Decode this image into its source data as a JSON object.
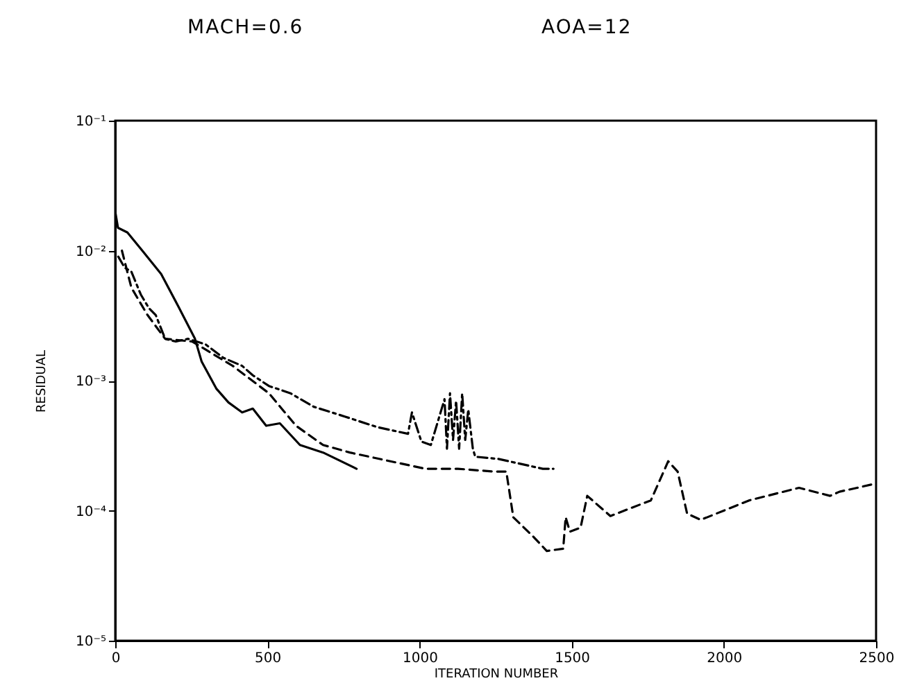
{
  "chart_data": {
    "type": "line",
    "annotations": [
      "MACH=0.6",
      "AOA=12"
    ],
    "xlabel": "ITERATION NUMBER",
    "ylabel": "RESIDUAL",
    "log": "y",
    "grid": false,
    "marker": "none",
    "xlim": [
      0,
      2500
    ],
    "xticks": [
      0,
      500,
      1000,
      1500,
      2000,
      2500
    ],
    "ylim": [
      1e-05,
      0.1
    ],
    "yticks": [
      {
        "value": 1e-05,
        "label": "10⁻⁵"
      },
      {
        "value": 0.0001,
        "label": "10⁻⁴"
      },
      {
        "value": 0.001,
        "label": "10⁻³"
      },
      {
        "value": 0.01,
        "label": "10⁻²"
      },
      {
        "value": 0.1,
        "label": "10⁻¹"
      }
    ],
    "series": [
      {
        "color": "#000000",
        "line_style": "solid",
        "x": [
          0,
          9,
          40,
          89,
          151,
          208,
          262,
          284,
          332,
          372,
          417,
          452,
          496,
          541,
          607,
          683,
          793
        ],
        "values": [
          0.02,
          0.015,
          0.0138,
          0.01,
          0.0066,
          0.0037,
          0.0021,
          0.0014,
          0.00087,
          0.00068,
          0.00057,
          0.00061,
          0.00045,
          0.00047,
          0.00032,
          0.00028,
          0.00021
        ]
      },
      {
        "color": "#000000",
        "line_style": "dotted",
        "x": [
          10,
          31,
          53,
          84,
          111,
          133,
          164,
          199,
          239,
          297,
          355,
          417,
          452,
          505,
          576,
          652,
          754,
          860,
          962,
          975,
          1006,
          1037,
          1082,
          1090,
          1100,
          1110,
          1120,
          1130,
          1140,
          1150,
          1160,
          1175,
          1183,
          1259,
          1405,
          1440
        ],
        "values": [
          0.009,
          0.0074,
          0.0069,
          0.0046,
          0.0036,
          0.0032,
          0.0021,
          0.002,
          0.0021,
          0.0019,
          0.0015,
          0.0013,
          0.0011,
          0.00091,
          0.0008,
          0.00063,
          0.00053,
          0.00044,
          0.00039,
          0.00057,
          0.00034,
          0.00032,
          0.00072,
          0.0003,
          0.0008,
          0.00035,
          0.0007,
          0.0003,
          0.0008,
          0.00035,
          0.0006,
          0.0003,
          0.00026,
          0.00025,
          0.00021,
          0.00021
        ]
      },
      {
        "color": "#000000",
        "line_style": "dashed",
        "x": [
          22,
          53,
          106,
          164,
          253,
          386,
          505,
          594,
          683,
          771,
          904,
          1020,
          1126,
          1241,
          1285,
          1308,
          1374,
          1418,
          1472,
          1480,
          1494,
          1529,
          1551,
          1627,
          1760,
          1817,
          1848,
          1879,
          1924,
          2083,
          2247,
          2349,
          2380,
          2438,
          2490
        ],
        "values": [
          0.01,
          0.0052,
          0.0032,
          0.0021,
          0.002,
          0.0013,
          0.0008,
          0.00045,
          0.00032,
          0.00028,
          0.00024,
          0.00021,
          0.00021,
          0.0002,
          0.0002,
          8.9e-05,
          6.3e-05,
          4.9e-05,
          5.1e-05,
          8.9e-05,
          6.9e-05,
          7.4e-05,
          0.00013,
          9.1e-05,
          0.00012,
          0.00024,
          0.0002,
          9.5e-05,
          8.5e-05,
          0.00012,
          0.00015,
          0.00013,
          0.00014,
          0.00015,
          0.00016
        ]
      }
    ]
  }
}
